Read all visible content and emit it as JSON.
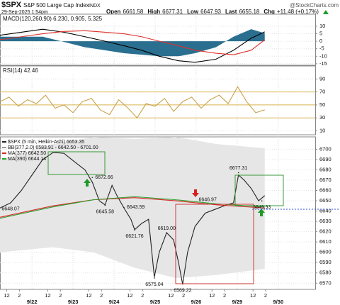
{
  "header": {
    "symbol": "$SPX",
    "name": "S&P 500 Large Cap Index",
    "exchange": "INDX",
    "source": "@StockCharts.com",
    "datetime": "29-Sep-2025 1:54pm",
    "quote": [
      {
        "label": "Open",
        "value": "6661.58"
      },
      {
        "label": "High",
        "value": "6677.31"
      },
      {
        "label": "Low",
        "value": "6647.93"
      },
      {
        "label": "Last",
        "value": "6655.18"
      },
      {
        "label": "Chg",
        "value": "+11.48 (+0.17%)"
      }
    ]
  },
  "chart_data": [
    {
      "type": "line",
      "title": "MACD(120,260,90) 6.230, 0.905, 5.325",
      "xlim": [
        -0.78,
        6.9
      ],
      "ylim": [
        -16,
        18
      ],
      "yticks": [
        10,
        5,
        0,
        -5,
        -10,
        -15
      ],
      "x": [
        -0.78,
        -0.26,
        0.26,
        0.78,
        1.29,
        1.78,
        2.24,
        2.67,
        3.1,
        3.57,
        3.97,
        4.48,
        4.91,
        5.34,
        5.67
      ],
      "series": [
        {
          "style": "area",
          "color": "#2a6f8f",
          "values": [
            3,
            3,
            3,
            -0.5,
            -4,
            -6,
            -8,
            -9,
            -10,
            -10,
            -8,
            -4,
            3,
            8,
            5.325
          ]
        },
        {
          "style": "line",
          "color": "#000000",
          "values": [
            4,
            6,
            8,
            6,
            3,
            0,
            -3,
            -6,
            -10,
            -13,
            -14,
            -12,
            -6,
            2,
            6.23
          ]
        },
        {
          "style": "line",
          "color": "#e0312b",
          "values": [
            1,
            3,
            5,
            6.5,
            7,
            6,
            5,
            3,
            0,
            -3,
            -6,
            -8,
            -9,
            -6,
            0.905
          ]
        }
      ]
    },
    {
      "type": "line",
      "title": "RSI(14) 42.46",
      "xlim": [
        -0.78,
        6.9
      ],
      "ylim": [
        4,
        110
      ],
      "yticks": [
        90,
        70,
        50,
        30,
        10
      ],
      "bands": [
        70,
        50,
        30
      ],
      "band_color": "#d9b650",
      "x": [
        -0.78,
        -0.56,
        -0.33,
        -0.11,
        0.11,
        0.33,
        0.56,
        0.78,
        1.0,
        1.22,
        1.45,
        1.67,
        1.89,
        2.11,
        2.34,
        2.56,
        2.78,
        3.0,
        3.23,
        3.45,
        3.67,
        3.89,
        4.12,
        4.34,
        4.56,
        4.78,
        5.01,
        5.23,
        5.45,
        5.67
      ],
      "series": [
        {
          "style": "line",
          "color": "#c9a24a",
          "values": [
            55,
            62,
            48,
            58,
            52,
            65,
            45,
            50,
            38,
            55,
            60,
            42,
            35,
            58,
            45,
            30,
            52,
            48,
            60,
            40,
            55,
            62,
            45,
            58,
            65,
            52,
            78,
            55,
            38,
            42.46
          ]
        }
      ]
    },
    {
      "type": "line",
      "xlim": [
        -0.78,
        6.9
      ],
      "ylim": [
        6564,
        6712
      ],
      "yticks": [
        6700,
        6690,
        6680,
        6670,
        6660,
        6650,
        6640,
        6630,
        6620,
        6610,
        6600,
        6590,
        6580,
        6570
      ],
      "xticks": [
        {
          "value": -0.615,
          "label": "12"
        },
        {
          "value": -0.308,
          "label": "2"
        },
        {
          "value": 0.385,
          "label": "12"
        },
        {
          "value": 0.692,
          "label": "2"
        },
        {
          "value": 1.385,
          "label": "12"
        },
        {
          "value": 1.692,
          "label": "2"
        },
        {
          "value": 2.385,
          "label": "12"
        },
        {
          "value": 2.692,
          "label": "2"
        },
        {
          "value": 3.385,
          "label": "12"
        },
        {
          "value": 3.692,
          "label": "2"
        },
        {
          "value": 4.385,
          "label": "12"
        },
        {
          "value": 4.692,
          "label": "2"
        },
        {
          "value": 5.385,
          "label": "12"
        },
        {
          "value": 5.692,
          "label": "2"
        }
      ],
      "date_ticks": [
        {
          "value": 0,
          "label": "9/22"
        },
        {
          "value": 1,
          "label": "9/23"
        },
        {
          "value": 2,
          "label": "9/24"
        },
        {
          "value": 3,
          "label": "9/25"
        },
        {
          "value": 4,
          "label": "9/26"
        },
        {
          "value": 5,
          "label": "9/29"
        },
        {
          "value": 6,
          "label": "9/30"
        }
      ],
      "series": [
        {
          "name": "$SPX (5 min, Heikin-Ashi) 6653.35",
          "style": "line",
          "color": "#222222",
          "x": [
            -0.78,
            -0.52,
            -0.26,
            0.0,
            0.26,
            0.52,
            0.78,
            1.03,
            1.29,
            1.47,
            1.64,
            1.78,
            1.95,
            2.07,
            2.24,
            2.41,
            2.5,
            2.67,
            2.84,
            2.98,
            3.1,
            3.28,
            3.45,
            3.57,
            3.67,
            3.79,
            3.97,
            4.22,
            4.48,
            4.74,
            4.91,
            5.03,
            5.17,
            5.34,
            5.52,
            5.67
          ],
          "values": [
            6643,
            6648,
            6660,
            6675,
            6690,
            6697,
            6696,
            6688,
            6680,
            6668,
            6650,
            6646,
            6665,
            6655,
            6643,
            6632,
            6622,
            6628,
            6632,
            6576,
            6600,
            6619,
            6612,
            6590,
            6569,
            6600,
            6625,
            6638,
            6642,
            6646,
            6648,
            6675,
            6670,
            6662,
            6650,
            6655
          ]
        },
        {
          "name": "BB(377,2.0) 6583.91 - 6642.50 - 6701.00",
          "style": "area",
          "color": "#e6e6e6",
          "x": [
            -0.78,
            0.5,
            1.5,
            2.5,
            3.5,
            4.5,
            5.67
          ],
          "values": [
            6690,
            6705,
            6712,
            6710,
            6712,
            6705,
            6701
          ],
          "lower": [
            6600,
            6605,
            6600,
            6585,
            6575,
            6578,
            6584
          ]
        },
        {
          "name": "MA(377) 6642.50",
          "style": "line",
          "color": "#d62728",
          "x": [
            -0.78,
            0.5,
            1.5,
            2.5,
            3.5,
            4.5,
            5.67
          ],
          "values": [
            6634,
            6645,
            6651,
            6653,
            6650,
            6646,
            6643
          ]
        },
        {
          "name": "MA(390) 6644.14",
          "style": "line",
          "color": "#2ca02c",
          "x": [
            -0.78,
            0.5,
            1.5,
            2.5,
            3.5,
            4.5,
            5.67
          ],
          "values": [
            6633,
            6644,
            6651,
            6654,
            6651,
            6647,
            6644
          ]
        }
      ],
      "annotations": [
        {
          "x": -0.52,
          "y": 6648.07,
          "label": "6648.07",
          "pos": "below"
        },
        {
          "x": 1.47,
          "y": 6672.66,
          "label": "6672.66",
          "pos": "right"
        },
        {
          "x": 1.78,
          "y": 6645.58,
          "label": "6645.58",
          "pos": "below"
        },
        {
          "x": 2.24,
          "y": 6643.59,
          "label": "6643.59",
          "pos": "right"
        },
        {
          "x": 2.5,
          "y": 6621.76,
          "label": "6621.76",
          "pos": "below"
        },
        {
          "x": 3.28,
          "y": 6619.0,
          "label": "6619.00",
          "pos": "above"
        },
        {
          "x": 2.98,
          "y": 6575.04,
          "label": "6575.04",
          "pos": "below"
        },
        {
          "x": 3.67,
          "y": 6569.22,
          "label": "6569.22",
          "pos": "below"
        },
        {
          "x": 4.28,
          "y": 6646.97,
          "label": "6646.97",
          "pos": "above"
        },
        {
          "x": 5.03,
          "y": 6677.31,
          "label": "6677.31",
          "pos": "above"
        },
        {
          "x": 5.6,
          "y": 6649.93,
          "label": "6649.93",
          "pos": "below"
        }
      ]
    }
  ]
}
